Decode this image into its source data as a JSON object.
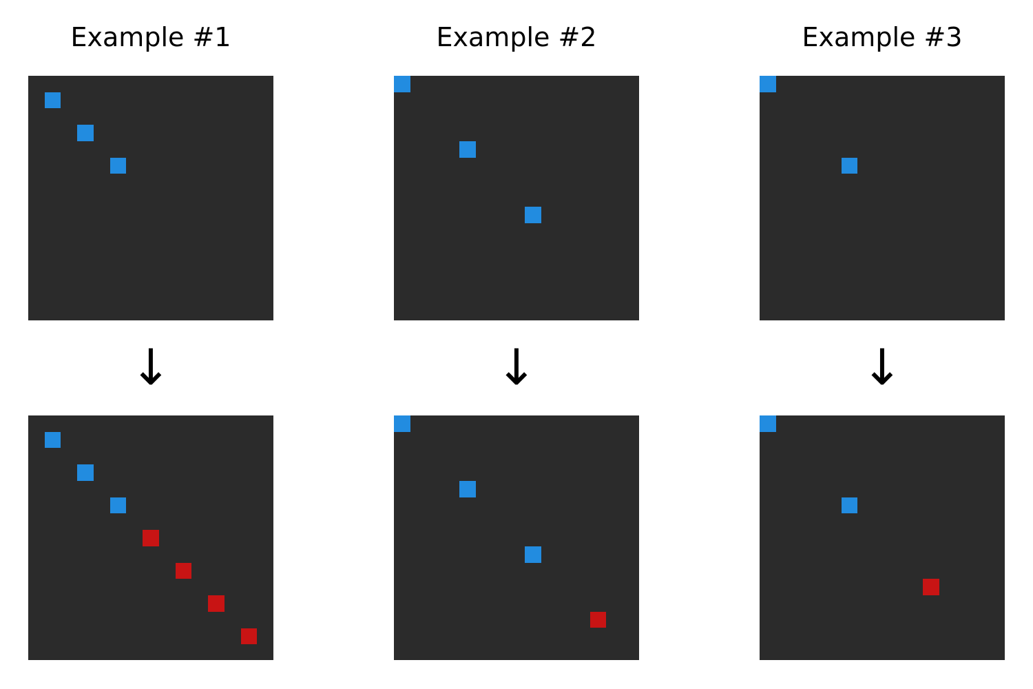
{
  "grid_size": 15,
  "colors": {
    "background": "#2b2b2b",
    "blue": "#228ce0",
    "red": "#c81414"
  },
  "arrow": "↓",
  "examples": [
    {
      "title": "Example #1",
      "input": [
        {
          "row": 1,
          "col": 1,
          "color": "blue"
        },
        {
          "row": 3,
          "col": 3,
          "color": "blue"
        },
        {
          "row": 5,
          "col": 5,
          "color": "blue"
        }
      ],
      "output": [
        {
          "row": 1,
          "col": 1,
          "color": "blue"
        },
        {
          "row": 3,
          "col": 3,
          "color": "blue"
        },
        {
          "row": 5,
          "col": 5,
          "color": "blue"
        },
        {
          "row": 7,
          "col": 7,
          "color": "red"
        },
        {
          "row": 9,
          "col": 9,
          "color": "red"
        },
        {
          "row": 11,
          "col": 11,
          "color": "red"
        },
        {
          "row": 13,
          "col": 13,
          "color": "red"
        }
      ]
    },
    {
      "title": "Example #2",
      "input": [
        {
          "row": 0,
          "col": 0,
          "color": "blue"
        },
        {
          "row": 4,
          "col": 4,
          "color": "blue"
        },
        {
          "row": 8,
          "col": 8,
          "color": "blue"
        }
      ],
      "output": [
        {
          "row": 0,
          "col": 0,
          "color": "blue"
        },
        {
          "row": 4,
          "col": 4,
          "color": "blue"
        },
        {
          "row": 8,
          "col": 8,
          "color": "blue"
        },
        {
          "row": 12,
          "col": 12,
          "color": "red"
        }
      ]
    },
    {
      "title": "Example #3",
      "input": [
        {
          "row": 0,
          "col": 0,
          "color": "blue"
        },
        {
          "row": 5,
          "col": 5,
          "color": "blue"
        }
      ],
      "output": [
        {
          "row": 0,
          "col": 0,
          "color": "blue"
        },
        {
          "row": 5,
          "col": 5,
          "color": "blue"
        },
        {
          "row": 10,
          "col": 10,
          "color": "red"
        }
      ]
    }
  ]
}
